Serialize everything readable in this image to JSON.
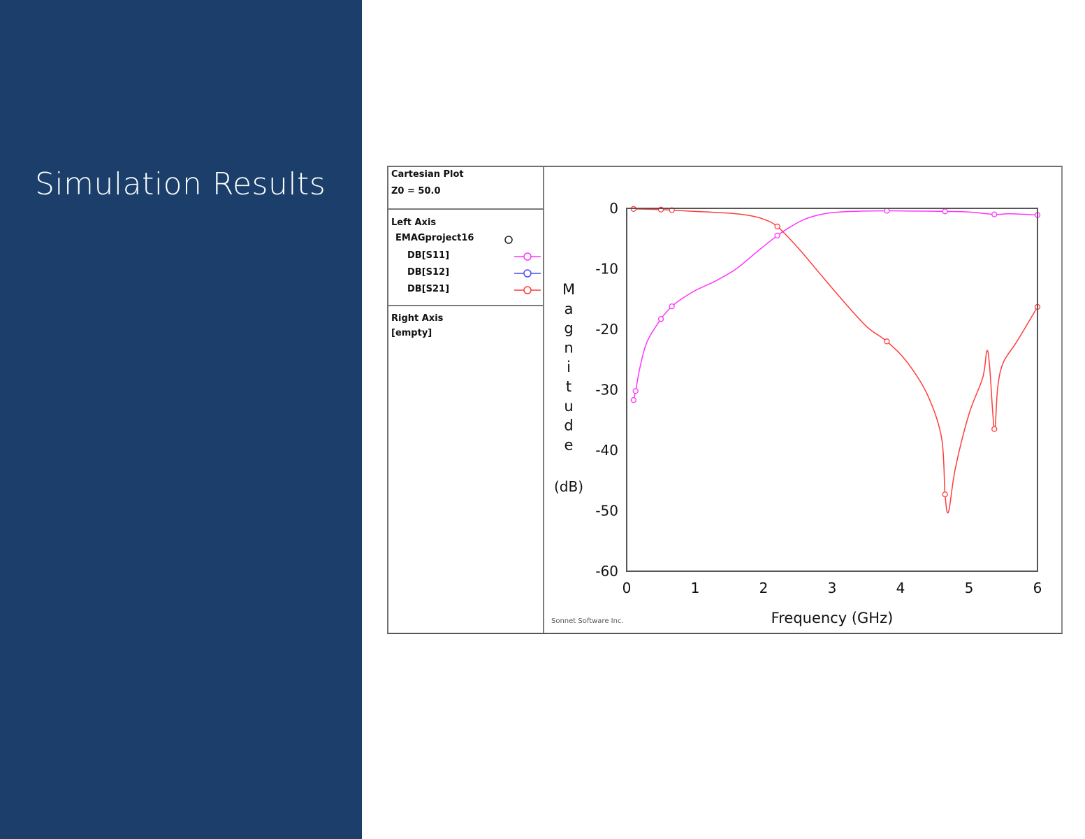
{
  "slide": {
    "title": "Simulation Results",
    "background_color": "#1b3f6a"
  },
  "plot_window": {
    "header": {
      "plot_type": "Cartesian Plot",
      "z0": "Z0 = 50.0"
    },
    "left_axis": {
      "title": "Left Axis",
      "project": "EMAGproject16",
      "entries": [
        {
          "label": "DB[S11]",
          "color": "#ff33ff"
        },
        {
          "label": "DB[S12]",
          "color": "#4b4bff"
        },
        {
          "label": "DB[S21]",
          "color": "#ff3c3c"
        }
      ]
    },
    "right_axis": {
      "title": "Right Axis",
      "value": "[empty]"
    },
    "footer_text": "Sonnet Software Inc."
  },
  "chart_data": {
    "type": "line",
    "xlabel": "Frequency (GHz)",
    "ylabel": "Magnitude",
    "ylabel_unit": "(dB)",
    "xlim": [
      0,
      6
    ],
    "ylim": [
      -60,
      0
    ],
    "xticks": [
      0,
      1,
      2,
      3,
      4,
      5,
      6
    ],
    "yticks": [
      0,
      -10,
      -20,
      -30,
      -40,
      -50,
      -60
    ],
    "grid": false,
    "series": [
      {
        "name": "DB[S11]",
        "color": "#ff33ff",
        "x": [
          0.1,
          0.13,
          0.2,
          0.3,
          0.5,
          0.66,
          0.8,
          1.0,
          1.3,
          1.6,
          1.9,
          2.2,
          2.4,
          2.6,
          2.8,
          3.0,
          3.3,
          3.8,
          4.2,
          4.65,
          5.0,
          5.37,
          5.6,
          6.0
        ],
        "y": [
          -31.7,
          -30.2,
          -26.0,
          -22.0,
          -18.3,
          -16.2,
          -15.0,
          -13.6,
          -12.0,
          -10.0,
          -7.2,
          -4.5,
          -3.0,
          -1.8,
          -1.1,
          -0.7,
          -0.5,
          -0.4,
          -0.45,
          -0.5,
          -0.6,
          -1.0,
          -0.9,
          -1.1
        ],
        "markers_x": [
          0.1,
          0.13,
          0.5,
          0.66,
          2.2,
          3.8,
          4.65,
          5.37,
          6.0
        ]
      },
      {
        "name": "DB[S21]",
        "color": "#ff3c3c",
        "x": [
          0.1,
          0.5,
          0.66,
          1.0,
          1.5,
          1.8,
          2.0,
          2.2,
          2.5,
          2.8,
          3.1,
          3.5,
          3.8,
          4.1,
          4.4,
          4.6,
          4.65,
          4.7,
          4.8,
          5.0,
          5.2,
          5.26,
          5.3,
          5.37,
          5.42,
          5.5,
          5.7,
          6.0
        ],
        "y": [
          -0.1,
          -0.2,
          -0.3,
          -0.5,
          -0.8,
          -1.2,
          -1.8,
          -3.0,
          -6.5,
          -10.5,
          -14.5,
          -19.5,
          -22.0,
          -25.5,
          -31.0,
          -38.0,
          -47.3,
          -50.2,
          -43.0,
          -34.0,
          -28.0,
          -23.6,
          -26.0,
          -36.5,
          -29.5,
          -25.5,
          -22.0,
          -16.3
        ],
        "markers_x": [
          0.1,
          0.5,
          0.66,
          2.2,
          3.8,
          4.65,
          5.37,
          6.0
        ]
      }
    ]
  }
}
